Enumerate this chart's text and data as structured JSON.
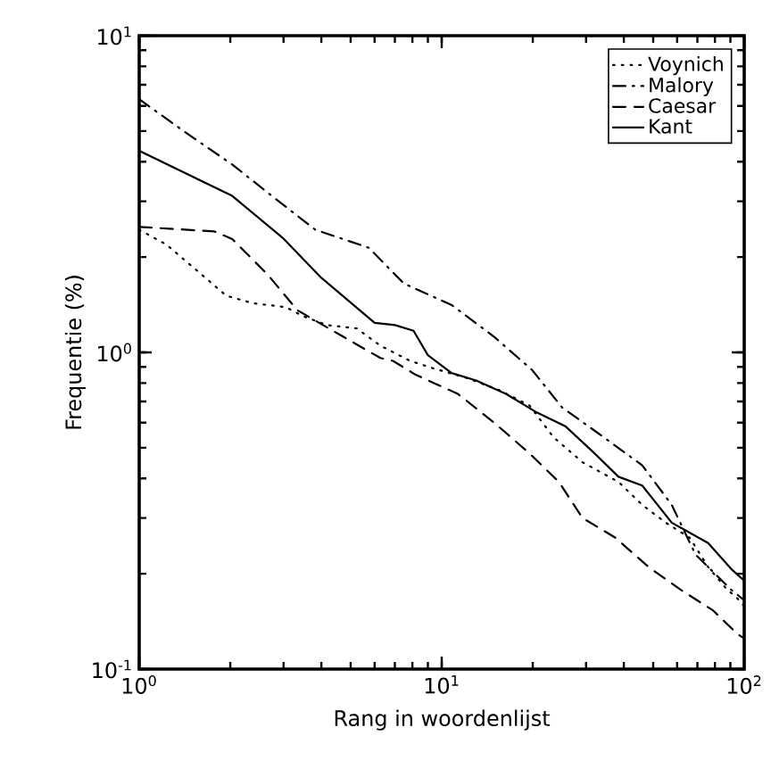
{
  "chart_data": {
    "type": "line",
    "xlabel": "Rang in woordenlijst",
    "ylabel": "Frequentie (%)",
    "log": "xy",
    "grid": false,
    "legend": "top right",
    "marker": "none",
    "xlim": [
      1,
      100
    ],
    "ylim": [
      0.1,
      10
    ],
    "xticks": [
      {
        "value": 1,
        "label": "10$^{0}$"
      },
      {
        "value": 10,
        "label": "10$^{1}$"
      },
      {
        "value": 100,
        "label": "10$^{2}$"
      }
    ],
    "yticks": [
      {
        "value": 0.1,
        "label": "10$^{-1}$"
      },
      {
        "value": 1,
        "label": "10$^{0}$"
      },
      {
        "value": 10,
        "label": "10$^{1}$"
      }
    ],
    "series": [
      {
        "name": "Voynich",
        "color": "#000000",
        "line_style": "dotted",
        "x": [
          1,
          1.23,
          1.61,
          1.94,
          2.37,
          3.05,
          3.49,
          4.17,
          5.24,
          6.27,
          7.87,
          9.4,
          12.1,
          15.5,
          19.5,
          23.4,
          29.2,
          38.4,
          46,
          55,
          66,
          76,
          87,
          95,
          100
        ],
        "values": [
          2.44,
          2.19,
          1.76,
          1.51,
          1.43,
          1.39,
          1.3,
          1.22,
          1.19,
          1.05,
          0.94,
          0.89,
          0.83,
          0.76,
          0.68,
          0.54,
          0.45,
          0.39,
          0.33,
          0.29,
          0.26,
          0.21,
          0.18,
          0.167,
          0.158
        ]
      },
      {
        "name": "Malory",
        "color": "#000000",
        "line_style": "dashdot",
        "x": [
          1,
          1.41,
          2.03,
          2.78,
          3.82,
          5.74,
          7.5,
          10.8,
          14.9,
          19.9,
          25,
          34.3,
          46,
          57.6,
          69,
          90.6,
          100
        ],
        "values": [
          6.3,
          4.98,
          3.92,
          3.09,
          2.44,
          2.14,
          1.65,
          1.41,
          1.12,
          0.88,
          0.67,
          0.54,
          0.44,
          0.33,
          0.23,
          0.178,
          0.165
        ]
      },
      {
        "name": "Caesar",
        "color": "#000000",
        "line_style": "dashed",
        "x": [
          1,
          1.77,
          2.03,
          2.66,
          3.33,
          4.58,
          6.27,
          6.9,
          8.2,
          11.3,
          14.9,
          19.5,
          24.4,
          29.2,
          37.5,
          48.3,
          61.7,
          79,
          95,
          100
        ],
        "values": [
          2.49,
          2.41,
          2.28,
          1.76,
          1.36,
          1.14,
          0.96,
          0.94,
          0.85,
          0.74,
          0.6,
          0.48,
          0.39,
          0.3,
          0.26,
          0.21,
          0.178,
          0.153,
          0.129,
          0.125
        ]
      },
      {
        "name": "Kant",
        "color": "#000000",
        "line_style": "solid",
        "x": [
          1,
          2.03,
          2.98,
          4,
          6,
          7,
          8.07,
          9,
          10.8,
          13,
          16.3,
          20.4,
          25.6,
          32,
          38.4,
          46,
          57.6,
          76,
          90.6,
          100
        ],
        "values": [
          4.33,
          3.12,
          2.3,
          1.72,
          1.24,
          1.22,
          1.17,
          0.98,
          0.86,
          0.815,
          0.74,
          0.65,
          0.585,
          0.48,
          0.405,
          0.38,
          0.29,
          0.25,
          0.207,
          0.19
        ]
      }
    ]
  }
}
